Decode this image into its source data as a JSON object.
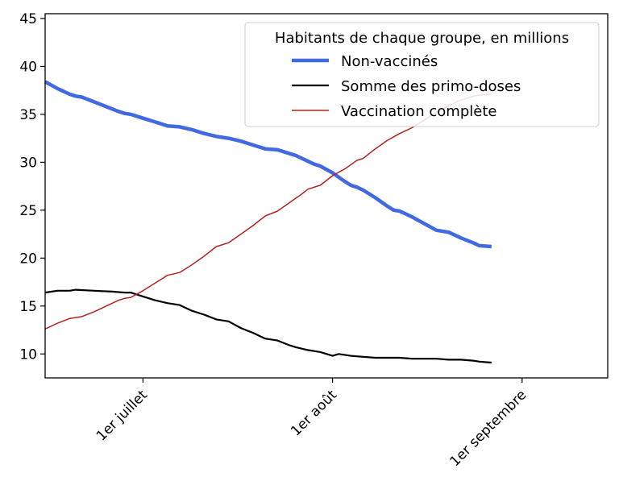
{
  "chart_data": {
    "type": "line",
    "x_axis": {
      "kind": "date",
      "range": [
        "2021-06-15",
        "2021-09-15"
      ],
      "ticks": [
        {
          "date": "2021-07-01",
          "label": "1er juillet"
        },
        {
          "date": "2021-08-01",
          "label": "1er août"
        },
        {
          "date": "2021-09-01",
          "label": "1er septembre"
        }
      ]
    },
    "y_axis": {
      "range": [
        7.5,
        45.5
      ],
      "ticks": [
        10,
        15,
        20,
        25,
        30,
        35,
        40,
        45
      ]
    },
    "grid": false,
    "legend": {
      "title": "Habitants de chaque groupe, en millions",
      "placement": "top-right"
    },
    "series": [
      {
        "name": "Non-vaccinés",
        "color": "#4169E1",
        "line_width": "thick",
        "points": [
          [
            "2021-06-15",
            38.4
          ],
          [
            "2021-06-17",
            37.7
          ],
          [
            "2021-06-19",
            37.1
          ],
          [
            "2021-06-20",
            36.9
          ],
          [
            "2021-06-21",
            36.8
          ],
          [
            "2021-06-23",
            36.3
          ],
          [
            "2021-06-25",
            35.8
          ],
          [
            "2021-06-27",
            35.3
          ],
          [
            "2021-06-28",
            35.1
          ],
          [
            "2021-06-29",
            35.0
          ],
          [
            "2021-07-01",
            34.6
          ],
          [
            "2021-07-03",
            34.2
          ],
          [
            "2021-07-05",
            33.8
          ],
          [
            "2021-07-07",
            33.7
          ],
          [
            "2021-07-09",
            33.4
          ],
          [
            "2021-07-11",
            33.0
          ],
          [
            "2021-07-13",
            32.7
          ],
          [
            "2021-07-15",
            32.5
          ],
          [
            "2021-07-17",
            32.2
          ],
          [
            "2021-07-19",
            31.8
          ],
          [
            "2021-07-21",
            31.4
          ],
          [
            "2021-07-23",
            31.3
          ],
          [
            "2021-07-25",
            30.9
          ],
          [
            "2021-07-26",
            30.7
          ],
          [
            "2021-07-28",
            30.1
          ],
          [
            "2021-07-29",
            29.8
          ],
          [
            "2021-07-30",
            29.6
          ],
          [
            "2021-08-01",
            28.9
          ],
          [
            "2021-08-03",
            28.0
          ],
          [
            "2021-08-04",
            27.6
          ],
          [
            "2021-08-05",
            27.4
          ],
          [
            "2021-08-06",
            27.1
          ],
          [
            "2021-08-08",
            26.3
          ],
          [
            "2021-08-10",
            25.4
          ],
          [
            "2021-08-11",
            25.0
          ],
          [
            "2021-08-12",
            24.9
          ],
          [
            "2021-08-14",
            24.3
          ],
          [
            "2021-08-16",
            23.6
          ],
          [
            "2021-08-18",
            22.9
          ],
          [
            "2021-08-20",
            22.7
          ],
          [
            "2021-08-22",
            22.1
          ],
          [
            "2021-08-24",
            21.6
          ],
          [
            "2021-08-25",
            21.3
          ],
          [
            "2021-08-27",
            21.2
          ]
        ]
      },
      {
        "name": "Somme des primo-doses",
        "color": "#000000",
        "line_width": "medium",
        "points": [
          [
            "2021-06-15",
            16.4
          ],
          [
            "2021-06-17",
            16.6
          ],
          [
            "2021-06-19",
            16.6
          ],
          [
            "2021-06-20",
            16.7
          ],
          [
            "2021-06-23",
            16.6
          ],
          [
            "2021-06-26",
            16.5
          ],
          [
            "2021-06-28",
            16.4
          ],
          [
            "2021-06-29",
            16.4
          ],
          [
            "2021-07-01",
            16.0
          ],
          [
            "2021-07-03",
            15.6
          ],
          [
            "2021-07-05",
            15.3
          ],
          [
            "2021-07-07",
            15.1
          ],
          [
            "2021-07-09",
            14.5
          ],
          [
            "2021-07-11",
            14.1
          ],
          [
            "2021-07-13",
            13.6
          ],
          [
            "2021-07-15",
            13.4
          ],
          [
            "2021-07-17",
            12.7
          ],
          [
            "2021-07-19",
            12.2
          ],
          [
            "2021-07-21",
            11.6
          ],
          [
            "2021-07-23",
            11.4
          ],
          [
            "2021-07-25",
            10.9
          ],
          [
            "2021-07-26",
            10.7
          ],
          [
            "2021-07-28",
            10.4
          ],
          [
            "2021-07-29",
            10.3
          ],
          [
            "2021-07-30",
            10.2
          ],
          [
            "2021-08-01",
            9.8
          ],
          [
            "2021-08-02",
            10.0
          ],
          [
            "2021-08-04",
            9.8
          ],
          [
            "2021-08-06",
            9.7
          ],
          [
            "2021-08-08",
            9.6
          ],
          [
            "2021-08-10",
            9.6
          ],
          [
            "2021-08-12",
            9.6
          ],
          [
            "2021-08-14",
            9.5
          ],
          [
            "2021-08-16",
            9.5
          ],
          [
            "2021-08-18",
            9.5
          ],
          [
            "2021-08-20",
            9.4
          ],
          [
            "2021-08-22",
            9.4
          ],
          [
            "2021-08-24",
            9.3
          ],
          [
            "2021-08-25",
            9.2
          ],
          [
            "2021-08-27",
            9.1
          ]
        ]
      },
      {
        "name": "Vaccination complète",
        "color": "#B22222",
        "line_width": "thin",
        "points": [
          [
            "2021-06-15",
            12.6
          ],
          [
            "2021-06-17",
            13.2
          ],
          [
            "2021-06-19",
            13.7
          ],
          [
            "2021-06-20",
            13.8
          ],
          [
            "2021-06-21",
            13.9
          ],
          [
            "2021-06-23",
            14.4
          ],
          [
            "2021-06-25",
            15.0
          ],
          [
            "2021-06-27",
            15.6
          ],
          [
            "2021-06-28",
            15.8
          ],
          [
            "2021-06-29",
            15.9
          ],
          [
            "2021-07-01",
            16.6
          ],
          [
            "2021-07-03",
            17.4
          ],
          [
            "2021-07-05",
            18.2
          ],
          [
            "2021-07-07",
            18.5
          ],
          [
            "2021-07-09",
            19.3
          ],
          [
            "2021-07-11",
            20.2
          ],
          [
            "2021-07-13",
            21.2
          ],
          [
            "2021-07-15",
            21.6
          ],
          [
            "2021-07-17",
            22.5
          ],
          [
            "2021-07-19",
            23.4
          ],
          [
            "2021-07-21",
            24.4
          ],
          [
            "2021-07-23",
            24.9
          ],
          [
            "2021-07-25",
            25.8
          ],
          [
            "2021-07-27",
            26.7
          ],
          [
            "2021-07-28",
            27.2
          ],
          [
            "2021-07-30",
            27.6
          ],
          [
            "2021-08-01",
            28.6
          ],
          [
            "2021-08-03",
            29.3
          ],
          [
            "2021-08-05",
            30.2
          ],
          [
            "2021-08-06",
            30.4
          ],
          [
            "2021-08-08",
            31.4
          ],
          [
            "2021-08-10",
            32.3
          ],
          [
            "2021-08-12",
            33.0
          ],
          [
            "2021-08-14",
            33.6
          ],
          [
            "2021-08-16",
            34.4
          ],
          [
            "2021-08-18",
            35.2
          ],
          [
            "2021-08-20",
            35.9
          ],
          [
            "2021-08-22",
            36.5
          ],
          [
            "2021-08-24",
            36.9
          ],
          [
            "2021-08-25",
            37.0
          ],
          [
            "2021-08-27",
            37.1
          ]
        ]
      }
    ]
  }
}
